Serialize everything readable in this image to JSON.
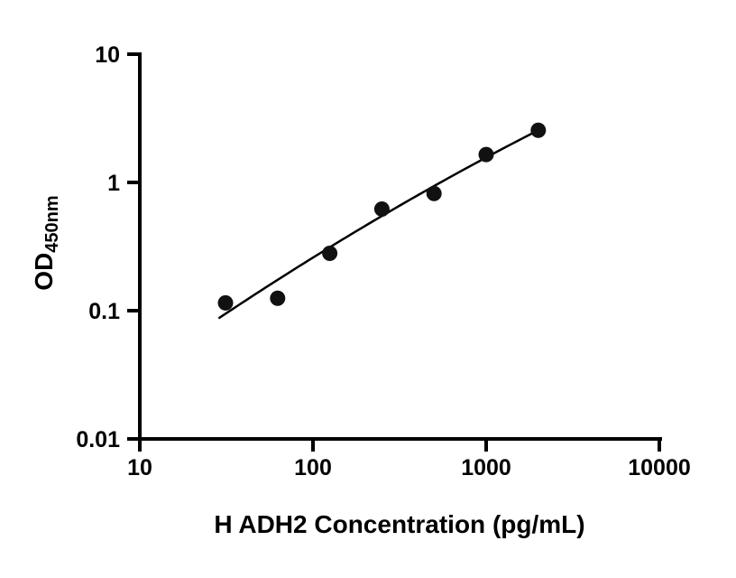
{
  "figure": {
    "background": "#ffffff",
    "axis_color": "#000000",
    "point_color": "#111111",
    "line_color": "#000000"
  },
  "chart_data": {
    "type": "scatter",
    "title": "",
    "xlabel": "H ADH2 Concentration (pg/mL)",
    "ylabel_main": "OD",
    "ylabel_sub": "450nm",
    "x_scale": "log",
    "y_scale": "log",
    "xlim": [
      10,
      10000
    ],
    "ylim": [
      0.01,
      10
    ],
    "grid": false,
    "legend_position": "none",
    "x_ticks": [
      10,
      100,
      1000,
      10000
    ],
    "x_tick_labels": [
      "10",
      "100",
      "1000",
      "10000"
    ],
    "y_ticks": [
      10,
      1,
      0.1,
      0.01
    ],
    "y_tick_labels": [
      "10",
      "1",
      "0.1",
      "0.01"
    ],
    "points": [
      {
        "x": 31.25,
        "y": 0.115
      },
      {
        "x": 62.5,
        "y": 0.125
      },
      {
        "x": 125,
        "y": 0.28
      },
      {
        "x": 250,
        "y": 0.62
      },
      {
        "x": 500,
        "y": 0.82
      },
      {
        "x": 1000,
        "y": 1.65
      },
      {
        "x": 2000,
        "y": 2.55
      }
    ],
    "fit_curve": {
      "model": "quadratic_loglog",
      "a": -2.492,
      "b": 1.068,
      "c": -0.0575,
      "x_start": 28.5,
      "x_end": 2000
    }
  }
}
